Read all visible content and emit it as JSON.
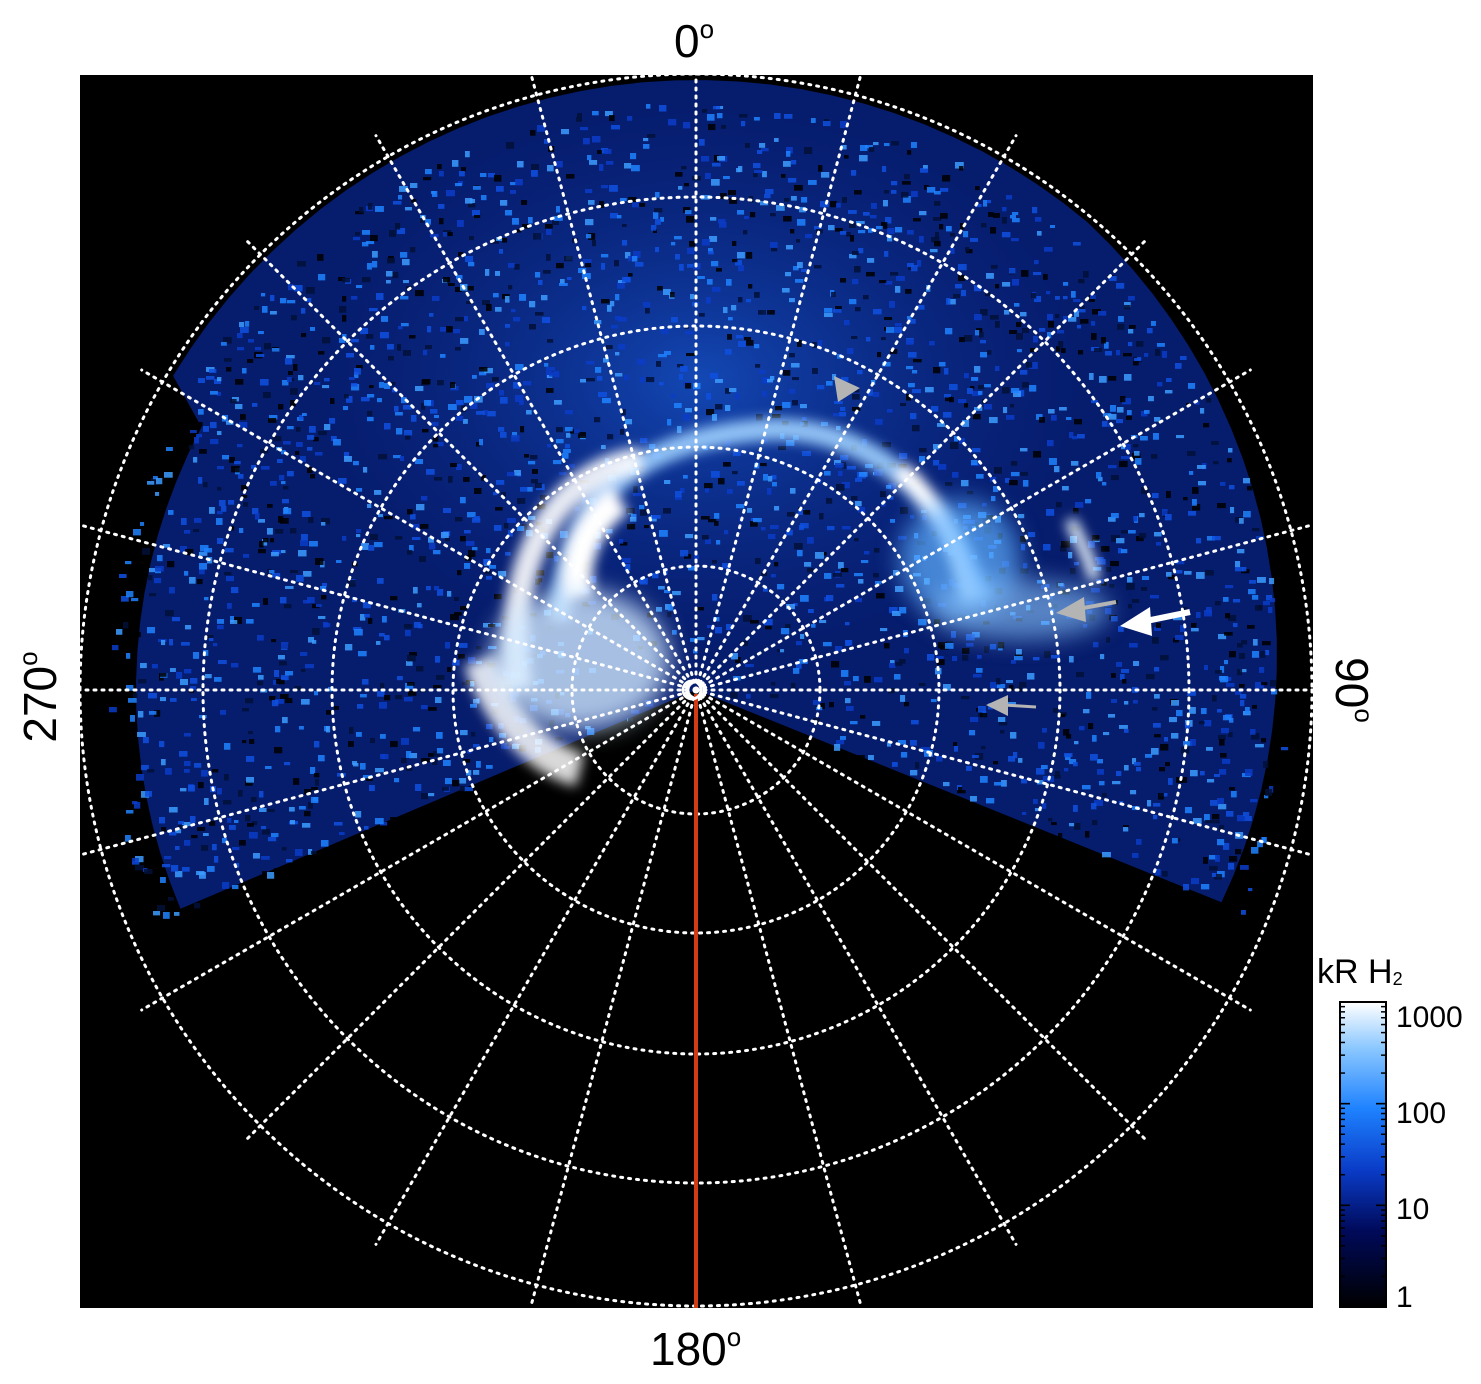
{
  "axis_labels": {
    "top": "0",
    "right": "90",
    "bottom": "180",
    "left": "270",
    "degree_symbol": "o"
  },
  "colorbar": {
    "title": "kR H",
    "title_subscript": "2",
    "ticks": [
      "1000",
      "100",
      "10",
      "1"
    ],
    "scale": "log",
    "range": [
      1,
      1000
    ],
    "colors": [
      "#000000",
      "#000a5a",
      "#0a3cc8",
      "#1e82ff",
      "#8cc8ff",
      "#ffffff"
    ]
  },
  "colors": {
    "background": "#000000",
    "grid": "#ffffff",
    "reference_line": "#d23c14",
    "white_arrow": "#ffffff",
    "grey_arrow": "#b4b4b4"
  },
  "grid": {
    "style": "dotted",
    "meridian_spacing_deg": 15,
    "parallel_rings": 5
  }
}
